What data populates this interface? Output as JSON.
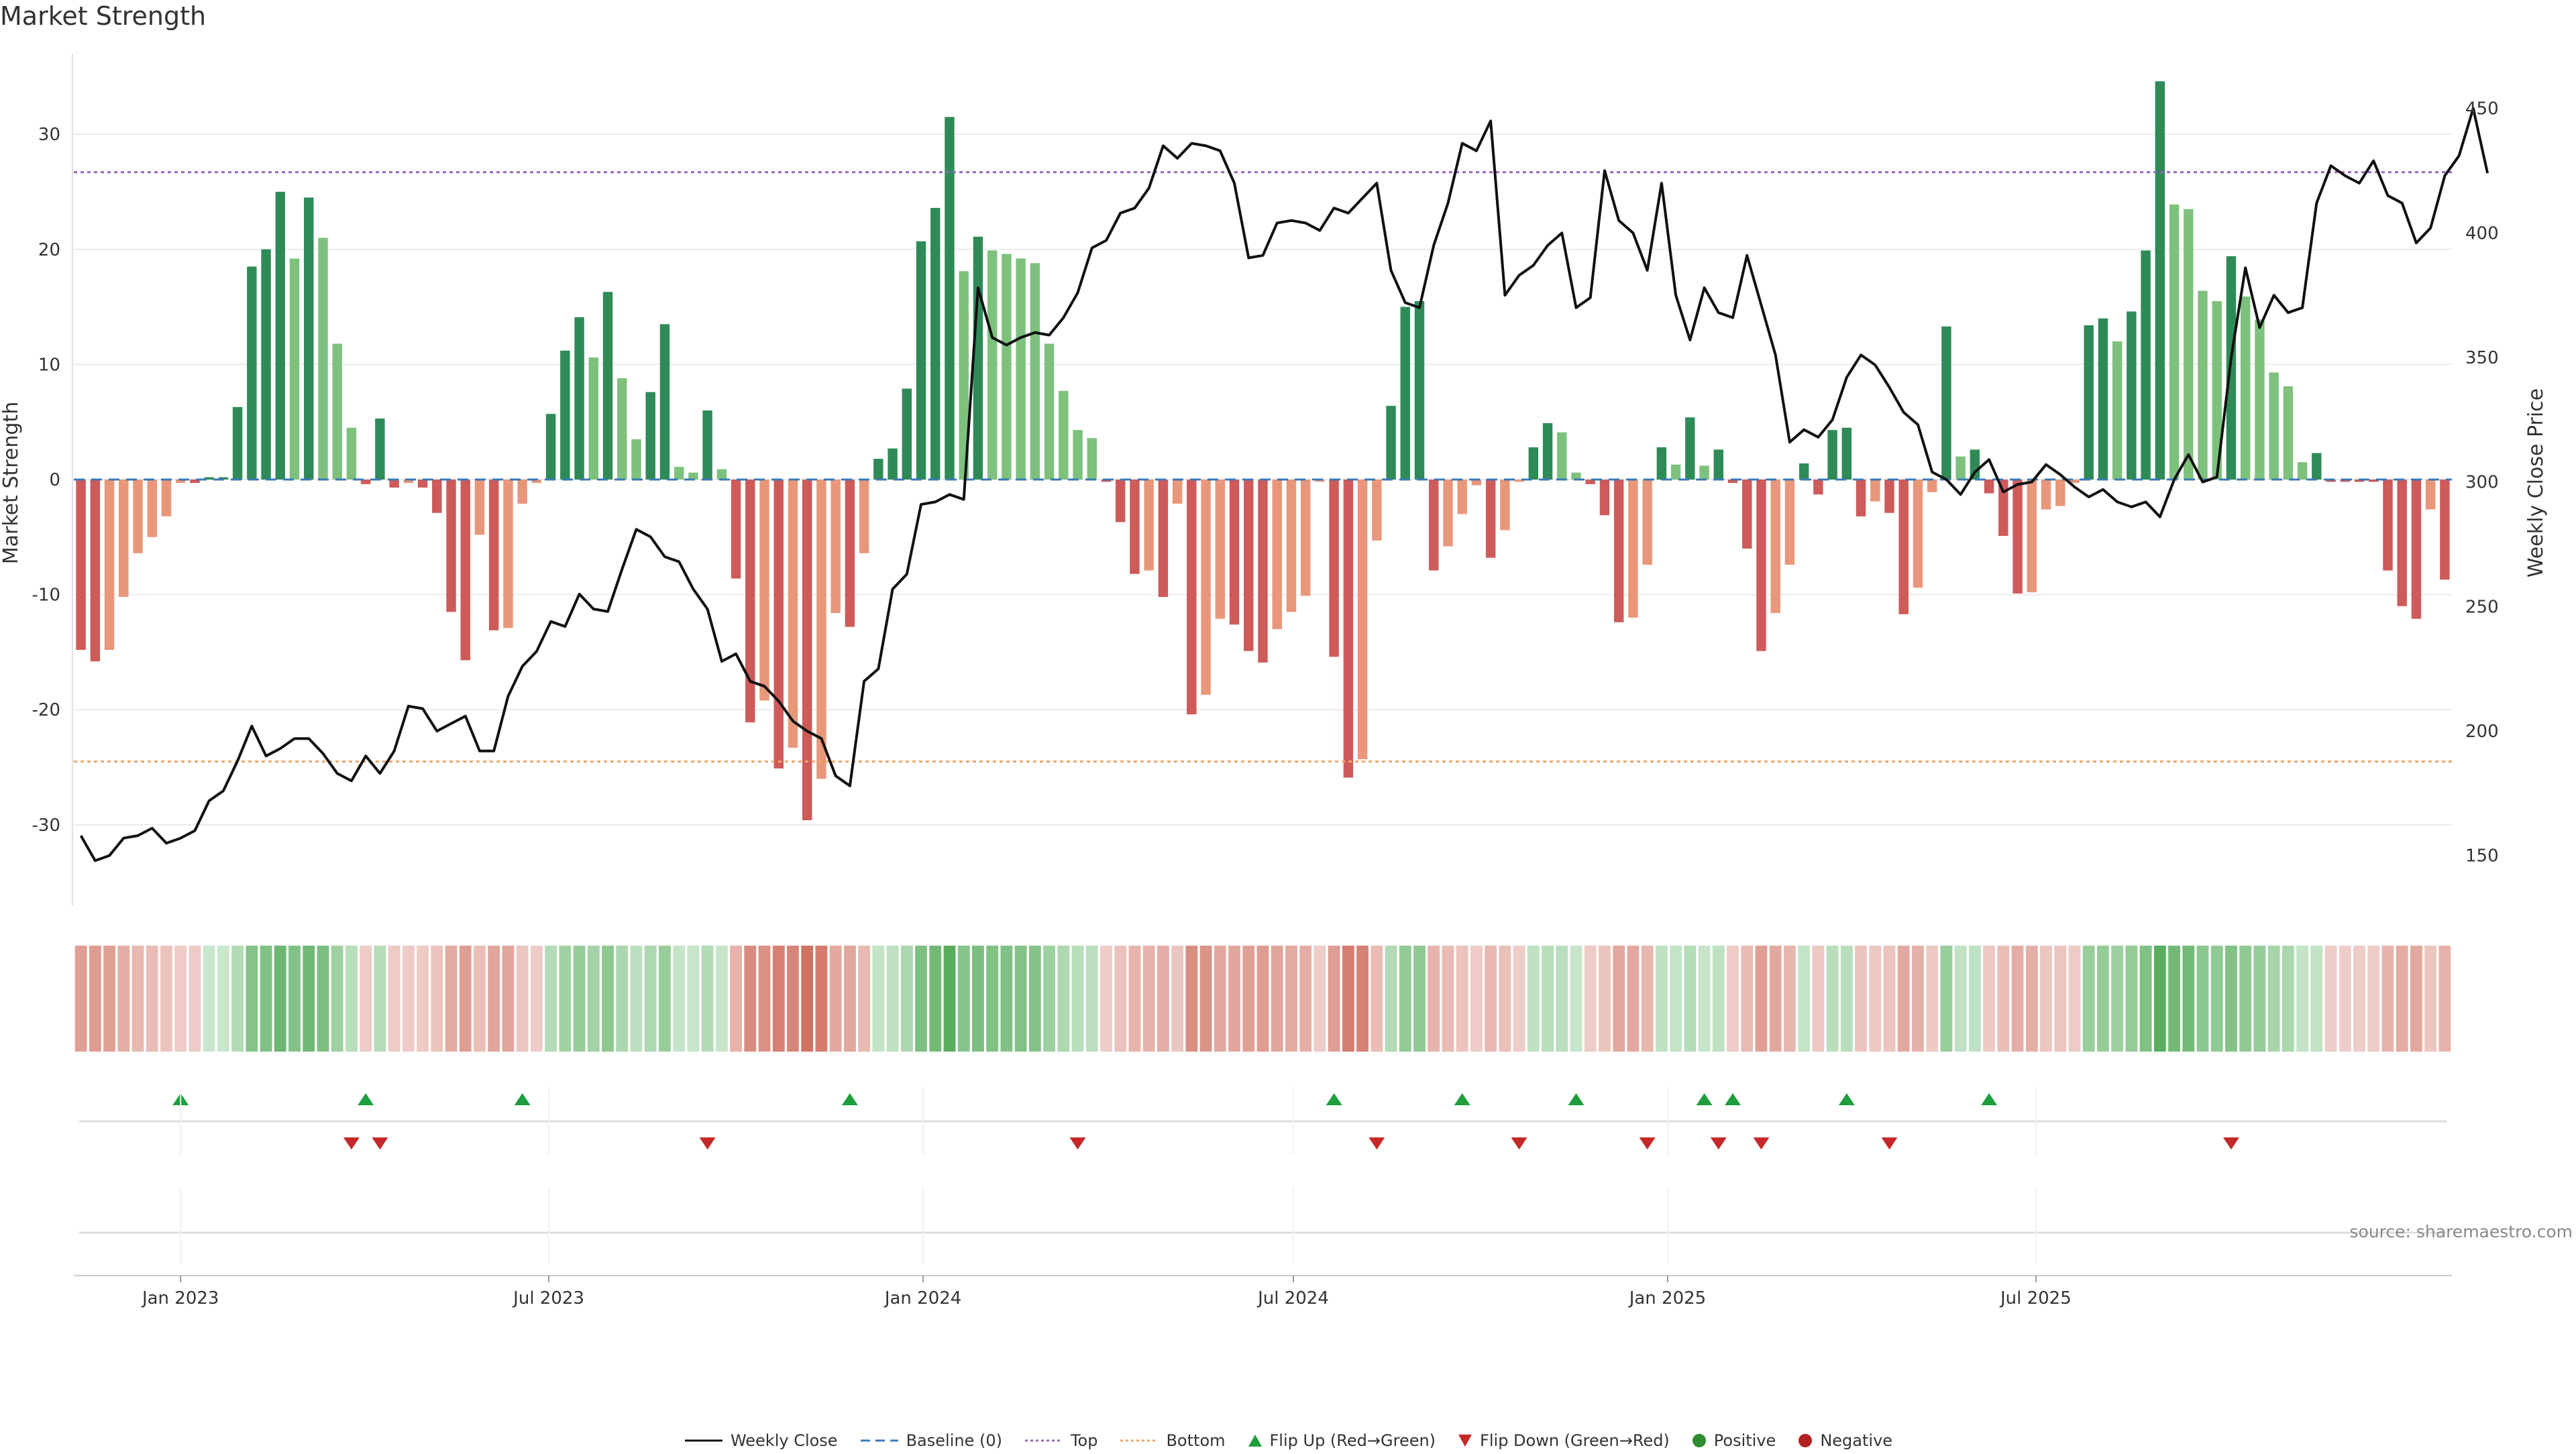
{
  "chart_data": [
    {
      "type": "bar",
      "title": "Market Strength",
      "ylabel": "Market Strength",
      "y2label": "Weekly Close Price",
      "ylim": [
        -37,
        37
      ],
      "y2lim": [
        130,
        472
      ],
      "yticks": [
        -30,
        -20,
        -10,
        0,
        10,
        20,
        30
      ],
      "y2ticks": [
        150,
        200,
        250,
        300,
        350,
        400,
        450
      ],
      "x_start": "2022-11-13",
      "x_interval": "1 week",
      "x_tick_labels": [
        "Jan 2023",
        "Jul 2023",
        "Jan 2024",
        "Jul 2024",
        "Jan 2025",
        "Jul 2025"
      ],
      "x_tick_dates": [
        "2023-01-01",
        "2023-07-01",
        "2024-01-01",
        "2024-07-01",
        "2025-01-01",
        "2025-07-01"
      ],
      "top_line": 26.7,
      "bottom_line": -24.5,
      "baseline": 0,
      "strength": [
        -14.8,
        -15.8,
        -14.8,
        -10.2,
        -6.4,
        -5,
        -3.2,
        -0.3,
        -0.3,
        0.2,
        0.2,
        6.3,
        18.5,
        20,
        25,
        19.2,
        24.5,
        21,
        11.8,
        4.5,
        -0.4,
        5.3,
        -0.7,
        -0.3,
        -0.7,
        -2.9,
        -11.5,
        -15.7,
        -4.8,
        -13.1,
        -12.9,
        -2.1,
        -0.3,
        5.7,
        11.2,
        14.1,
        10.6,
        16.3,
        8.8,
        3.5,
        7.6,
        13.5,
        1.1,
        0.6,
        6,
        0.9,
        -8.6,
        -21.1,
        -19.2,
        -25.1,
        -23.3,
        -29.6,
        -26,
        -11.6,
        -12.8,
        -6.4,
        1.8,
        2.7,
        7.9,
        20.7,
        23.6,
        31.5,
        18.1,
        21.1,
        19.9,
        19.6,
        19.2,
        18.8,
        11.8,
        7.7,
        4.3,
        3.6,
        -0.2,
        -3.7,
        -8.2,
        -7.9,
        -10.2,
        -2.1,
        -20.4,
        -18.7,
        -12.1,
        -12.6,
        -14.9,
        -15.9,
        -13,
        -11.5,
        -10.1,
        -0.2,
        -15.4,
        -25.9,
        -24.3,
        -5.3,
        6.4,
        15,
        15.5,
        -7.9,
        -5.8,
        -3,
        -0.5,
        -6.8,
        -4.4,
        -0.2,
        2.8,
        4.9,
        4.1,
        0.6,
        -0.4,
        -3.1,
        -12.4,
        -12,
        -7.4,
        2.8,
        1.3,
        5.4,
        1.2,
        2.6,
        -0.3,
        -6,
        -14.9,
        -11.6,
        -7.4,
        1.4,
        -1.3,
        4.3,
        4.5,
        -3.2,
        -1.9,
        -2.9,
        -11.7,
        -9.4,
        -1.1,
        13.3,
        2,
        2.6,
        -1.2,
        -4.9,
        -9.9,
        -9.8,
        -2.6,
        -2.3,
        -0.3,
        13.4,
        14,
        12,
        14.6,
        19.9,
        34.6,
        23.9,
        23.5,
        16.4,
        15.5,
        19.4,
        15.9,
        13.9,
        9.3,
        8.1,
        1.5,
        2.3,
        -0.2,
        -0.2,
        -0.2,
        -0.2,
        -7.9,
        -11,
        -12.1,
        -2.6,
        -8.7
      ],
      "weekly_close": [
        158,
        148,
        150,
        157,
        158,
        161,
        155,
        157,
        160,
        172,
        176,
        188,
        202,
        190,
        193,
        197,
        197,
        191,
        183,
        180,
        190,
        183,
        192,
        210,
        209,
        200,
        203,
        206,
        192,
        192,
        214,
        226,
        232,
        244,
        242,
        255,
        249,
        248,
        265,
        281,
        278,
        270,
        268,
        257,
        249,
        228,
        231,
        220,
        218,
        212,
        204,
        200,
        197,
        182,
        178,
        220,
        225,
        257,
        263,
        291,
        292,
        295,
        293,
        378,
        358,
        355,
        358,
        360,
        359,
        366,
        376,
        394,
        397,
        408,
        410,
        418,
        435,
        430,
        436,
        435,
        433,
        420,
        390,
        391,
        404,
        405,
        404,
        401,
        410,
        408,
        414,
        420,
        385,
        372,
        370,
        395,
        412,
        436,
        433,
        445,
        375,
        383,
        387,
        395,
        400,
        370,
        374,
        425,
        405,
        400,
        385,
        420,
        375,
        357,
        378,
        368,
        366,
        391,
        371,
        351,
        316,
        321,
        318,
        325,
        342,
        351,
        347,
        338,
        328,
        323,
        304,
        301,
        295,
        304,
        309,
        296,
        299,
        300,
        307,
        303,
        298,
        294,
        297,
        292,
        290,
        292,
        286,
        301,
        311,
        300,
        302,
        350,
        386,
        362,
        375,
        368,
        370,
        412,
        427,
        423,
        420,
        429,
        415,
        412,
        396,
        402,
        423,
        431,
        450,
        424
      ]
    },
    {
      "type": "heatmap",
      "description_of_colors": "weekly strength heat strip; green shades positive, red shades negative",
      "colors": {
        "positive_strong": "#5aad5e",
        "positive_light": "#d8eedb",
        "negative_strong": "#cf7060",
        "negative_light": "#f3d9d6"
      }
    },
    {
      "type": "scatter",
      "series": [
        {
          "name": "Flip Up (Red→Green)",
          "x_index": [
            7,
            20,
            31,
            54,
            88,
            97,
            105,
            114,
            116,
            124,
            134
          ]
        },
        {
          "name": "Flip Down (Green→Red)",
          "x_index": [
            19,
            21,
            44,
            70,
            91,
            101,
            110,
            115,
            118,
            127,
            151
          ]
        }
      ]
    }
  ],
  "colors": {
    "bar_dark_green": "#2e8b57",
    "bar_light_green": "#7dc17d",
    "bar_dark_red": "#cf5a5a",
    "bar_light_red": "#e8977a",
    "close_line": "#111111",
    "baseline": "#3b7ab8",
    "top": "#9467bd",
    "bottom": "#f0a868",
    "flip_up": "#1f9e3e",
    "flip_down": "#c62828",
    "positive": "#2e8b2e",
    "negative": "#b22222"
  },
  "source": "source: sharemaestro.com",
  "legend": {
    "weekly_close": "Weekly Close",
    "baseline": "Baseline (0)",
    "top": "Top",
    "bottom": "Bottom",
    "flip_up": "Flip Up (Red→Green)",
    "flip_down": "Flip Down (Green→Red)",
    "positive": "Positive",
    "negative": "Negative"
  }
}
